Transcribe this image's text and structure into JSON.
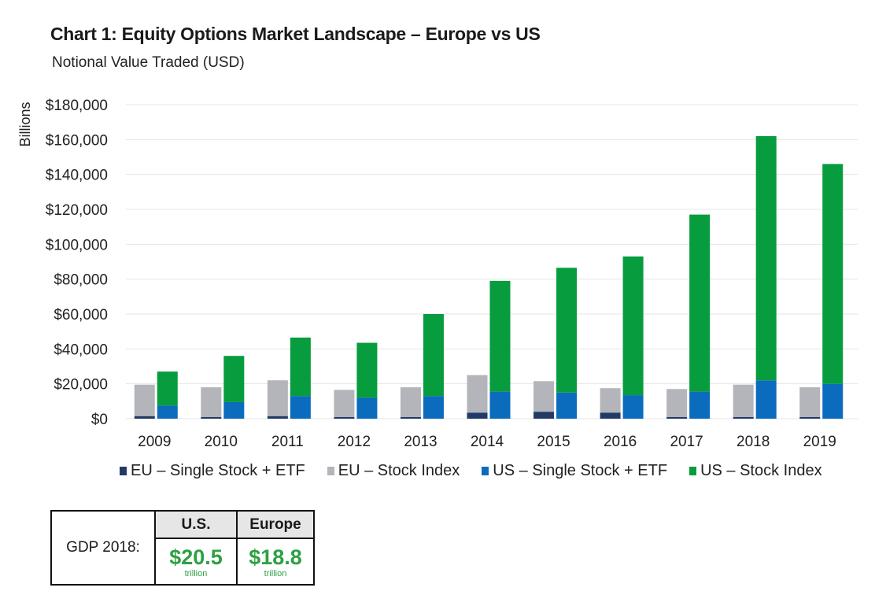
{
  "header": {
    "title": "Chart 1: Equity Options Market Landscape – Europe vs US",
    "subtitle": "Notional Value Traded (USD)"
  },
  "chart_data": {
    "type": "bar",
    "stacked_groups": true,
    "title": "Chart 1: Equity Options Market Landscape – Europe vs US",
    "subtitle": "Notional Value Traded (USD)",
    "xlabel": "",
    "ylabel": "Billions",
    "ylim": [
      0,
      180000
    ],
    "yticks": [
      0,
      20000,
      40000,
      60000,
      80000,
      100000,
      120000,
      140000,
      160000,
      180000
    ],
    "ytick_labels": [
      "$0",
      "$20,000",
      "$40,000",
      "$60,000",
      "$80,000",
      "$100,000",
      "$120,000",
      "$140,000",
      "$160,000",
      "$180,000"
    ],
    "grid": true,
    "legend_position": "bottom",
    "categories": [
      "2009",
      "2010",
      "2011",
      "2012",
      "2013",
      "2014",
      "2015",
      "2016",
      "2017",
      "2018",
      "2019"
    ],
    "series": [
      {
        "name": "EU – Single Stock + ETF",
        "stack": "EU",
        "color": "#233a66",
        "values": [
          1500,
          1000,
          1500,
          1000,
          1000,
          3500,
          4000,
          3500,
          1000,
          1000,
          1000
        ]
      },
      {
        "name": "EU – Stock Index",
        "stack": "EU",
        "color": "#b3b5bb",
        "values": [
          18000,
          17000,
          20500,
          15500,
          17000,
          21500,
          17500,
          14000,
          16000,
          18500,
          17000
        ]
      },
      {
        "name": "US – Single Stock + ETF",
        "stack": "US",
        "color": "#0b6bbd",
        "values": [
          7500,
          9500,
          13000,
          12000,
          13000,
          15500,
          15000,
          13500,
          15500,
          22000,
          20000
        ]
      },
      {
        "name": "US – Stock Index",
        "stack": "US",
        "color": "#079c3d",
        "values": [
          19500,
          26500,
          33500,
          31500,
          47000,
          63500,
          71500,
          79500,
          101500,
          140000,
          126000
        ]
      }
    ]
  },
  "gdp_table": {
    "row_label": "GDP 2018:",
    "columns": [
      {
        "header": "U.S.",
        "value": "$20.5",
        "unit": "trillion"
      },
      {
        "header": "Europe",
        "value": "$18.8",
        "unit": "trillion"
      }
    ],
    "value_color": "#2ea043"
  }
}
